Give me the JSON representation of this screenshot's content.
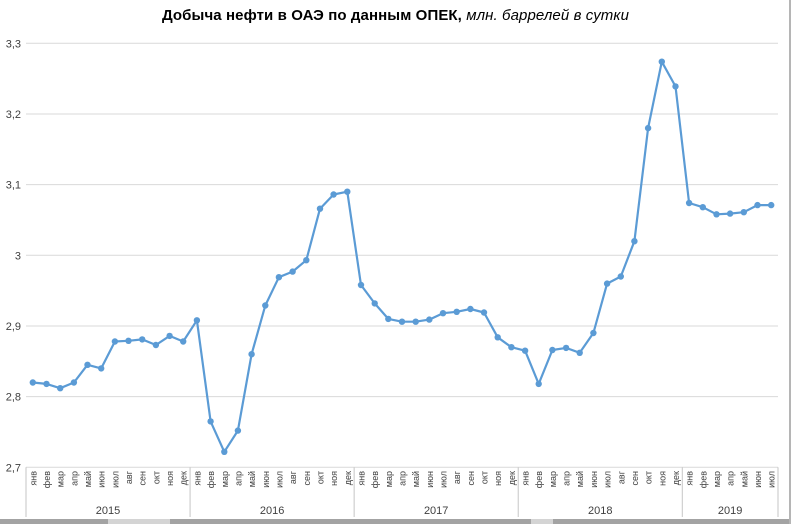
{
  "title": {
    "main": "Добыча нефти в ОАЭ по данным ОПЕК,",
    "subtitle": " млн. баррелей в сутки"
  },
  "colors": {
    "line": "#5B9BD5",
    "marker": "#5B9BD5",
    "gridline": "#D9D9D9",
    "separator": "#C6C6C6",
    "axis_text": "#3F3F3F",
    "title_text": "#000000"
  },
  "y_axis": {
    "tick_labels": [
      "3,3",
      "3,2",
      "3,1",
      "3",
      "2,9",
      "2,8",
      "2,7"
    ],
    "min": 2.7,
    "max": 3.3,
    "step": 0.1
  },
  "x_axis": {
    "months_cycle": [
      "янв",
      "фев",
      "мар",
      "апр",
      "май",
      "июн",
      "июл",
      "авг",
      "сен",
      "окт",
      "ноя",
      "дек"
    ],
    "year_groups": [
      {
        "label": "2015",
        "months": 12
      },
      {
        "label": "2016",
        "months": 12
      },
      {
        "label": "2017",
        "months": 12
      },
      {
        "label": "2018",
        "months": 12
      },
      {
        "label": "2019",
        "months": 7
      }
    ]
  },
  "chart_data": {
    "type": "line",
    "title": "Добыча нефти в ОАЭ по данным ОПЕК, млн. баррелей в сутки",
    "xlabel": "",
    "ylabel": "млн. баррелей в сутки",
    "ylim": [
      2.7,
      3.3
    ],
    "grid": "horizontal",
    "legend": "none",
    "marker": "circle",
    "categories_note": "months янв–дек for 2015–2018, янв–июл for 2019",
    "series": [
      {
        "name": "Добыча нефти в ОАЭ",
        "values": [
          2.82,
          2.818,
          2.812,
          2.82,
          2.845,
          2.84,
          2.878,
          2.879,
          2.881,
          2.873,
          2.886,
          2.878,
          2.908,
          2.765,
          2.722,
          2.752,
          2.86,
          2.929,
          2.969,
          2.977,
          2.993,
          3.066,
          3.086,
          3.09,
          2.958,
          2.932,
          2.91,
          2.906,
          2.906,
          2.909,
          2.918,
          2.92,
          2.924,
          2.919,
          2.884,
          2.87,
          2.865,
          2.818,
          2.866,
          2.869,
          2.862,
          2.89,
          2.96,
          2.97,
          3.02,
          3.18,
          3.274,
          3.239,
          3.074,
          3.068,
          3.058,
          3.059,
          3.061,
          3.071,
          3.071
        ]
      }
    ]
  }
}
